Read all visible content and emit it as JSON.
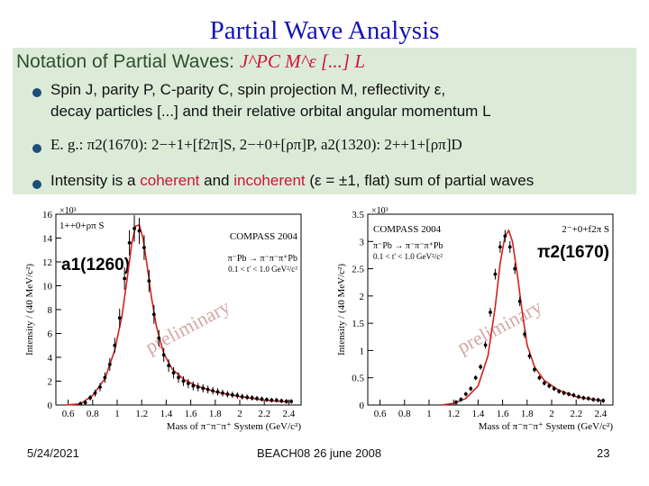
{
  "title": "Partial Wave Analysis",
  "box": {
    "heading": "Notation of Partial Waves:",
    "heading_formula": "J^PC M^ε [...] L",
    "bullet1_line1": "Spin J, parity P, C-parity C, spin projection M, reflectivity ε,",
    "bullet1_line2": "decay particles [...] and their relative orbital angular momentum L",
    "bullet2": "E. g.: π2(1670): 2−+1+[f2π]S, 2−+0+[ρπ]P, a2(1320): 2++1+[ρπ]D",
    "bullet3_a": "Intensity is a",
    "bullet3_coherent": "coherent",
    "bullet3_and": "and",
    "bullet3_incoherent": "incoherent",
    "bullet3_b": "(ε = ±1, flat) sum of partial waves"
  },
  "chart_data": [
    {
      "type": "scatter",
      "title": "a1(1260)",
      "wave_label": "1++0+ρπ S",
      "experiment": "COMPASS 2004",
      "reaction": "π⁻Pb → π⁻π⁻π⁺Pb",
      "t_range": "0.1 < t' < 1.0 GeV²/c²",
      "watermark": "preliminary",
      "multiplier": "×10³",
      "xlabel": "Mass of π⁻π⁻π⁺ System (GeV/c²)",
      "ylabel": "Intensity / (40 MeV/c²)",
      "xlim": [
        0.5,
        2.5
      ],
      "ylim": [
        0,
        16
      ],
      "xticks": [
        0.6,
        0.8,
        1,
        1.2,
        1.4,
        1.6,
        1.8,
        2,
        2.2,
        2.4
      ],
      "yticks": [
        0,
        2,
        4,
        6,
        8,
        10,
        12,
        14,
        16
      ],
      "x": [
        0.7,
        0.74,
        0.78,
        0.82,
        0.86,
        0.9,
        0.94,
        0.98,
        1.02,
        1.06,
        1.1,
        1.14,
        1.18,
        1.22,
        1.26,
        1.3,
        1.34,
        1.38,
        1.42,
        1.46,
        1.5,
        1.54,
        1.58,
        1.62,
        1.66,
        1.7,
        1.74,
        1.78,
        1.82,
        1.86,
        1.9,
        1.94,
        1.98,
        2.02,
        2.06,
        2.1,
        2.14,
        2.18,
        2.22,
        2.26,
        2.3,
        2.34,
        2.38,
        2.42
      ],
      "y": [
        0.1,
        0.2,
        0.6,
        1.0,
        1.5,
        2.3,
        3.4,
        5.0,
        7.3,
        10.6,
        13.6,
        14.8,
        14.6,
        13.2,
        10.4,
        7.6,
        5.6,
        4.2,
        3.3,
        2.7,
        2.3,
        2.0,
        1.8,
        1.6,
        1.5,
        1.4,
        1.3,
        1.2,
        1.1,
        1.0,
        0.9,
        0.85,
        0.8,
        0.7,
        0.65,
        0.6,
        0.55,
        0.5,
        0.45,
        0.4,
        0.4,
        0.35,
        0.3,
        0.3
      ],
      "fit_x": [
        0.58,
        0.7,
        0.8,
        0.9,
        0.98,
        1.04,
        1.08,
        1.12,
        1.15,
        1.18,
        1.21,
        1.24,
        1.28,
        1.32,
        1.38,
        1.45,
        1.55,
        1.65,
        1.8,
        2.0,
        2.2,
        2.4
      ],
      "fit_y": [
        0.0,
        0.1,
        0.8,
        2.2,
        4.6,
        7.5,
        10.5,
        13.6,
        15.0,
        15.1,
        14.0,
        12.0,
        9.0,
        6.6,
        4.3,
        3.0,
        2.1,
        1.6,
        1.1,
        0.7,
        0.4,
        0.25
      ],
      "line_color": "#d42020"
    },
    {
      "type": "scatter",
      "title": "π2(1670)",
      "wave_label": "2⁻+0+f2π S",
      "experiment": "COMPASS 2004",
      "reaction": "π⁻Pb → π⁻π⁻π⁺Pb",
      "t_range": "0.1 < t' < 1.0 GeV²/c²",
      "watermark": "preliminary",
      "multiplier": "×10³",
      "xlabel": "Mass of π⁻π⁻π⁺ System (GeV/c²)",
      "ylabel": "Intensity / (40 MeV/c²)",
      "xlim": [
        0.5,
        2.5
      ],
      "ylim": [
        0,
        3.5
      ],
      "xticks": [
        0.6,
        0.8,
        1,
        1.2,
        1.4,
        1.6,
        1.8,
        2,
        2.2,
        2.4
      ],
      "yticks": [
        0,
        0.5,
        1,
        1.5,
        2,
        2.5,
        3,
        3.5
      ],
      "x": [
        1.22,
        1.26,
        1.3,
        1.34,
        1.38,
        1.42,
        1.46,
        1.5,
        1.54,
        1.58,
        1.62,
        1.66,
        1.7,
        1.74,
        1.78,
        1.82,
        1.86,
        1.9,
        1.94,
        1.98,
        2.02,
        2.06,
        2.1,
        2.14,
        2.18,
        2.22,
        2.26,
        2.3,
        2.34,
        2.38,
        2.42
      ],
      "y": [
        0.05,
        0.1,
        0.2,
        0.3,
        0.5,
        0.7,
        1.1,
        1.7,
        2.4,
        2.9,
        3.1,
        2.9,
        2.5,
        1.9,
        1.3,
        0.9,
        0.65,
        0.5,
        0.4,
        0.35,
        0.3,
        0.25,
        0.22,
        0.2,
        0.18,
        0.15,
        0.13,
        0.12,
        0.1,
        0.09,
        0.08
      ],
      "fit_x": [
        1.1,
        1.2,
        1.3,
        1.4,
        1.48,
        1.54,
        1.58,
        1.62,
        1.65,
        1.68,
        1.72,
        1.76,
        1.8,
        1.86,
        1.94,
        2.05,
        2.2,
        2.4
      ],
      "fit_y": [
        0.0,
        0.03,
        0.12,
        0.35,
        0.9,
        1.8,
        2.6,
        3.1,
        3.2,
        3.0,
        2.4,
        1.7,
        1.1,
        0.7,
        0.45,
        0.28,
        0.15,
        0.08
      ],
      "line_color": "#d42020"
    }
  ],
  "footer": {
    "date": "5/24/2021",
    "event": "BEACH08 26 june 2008",
    "page": "23"
  }
}
